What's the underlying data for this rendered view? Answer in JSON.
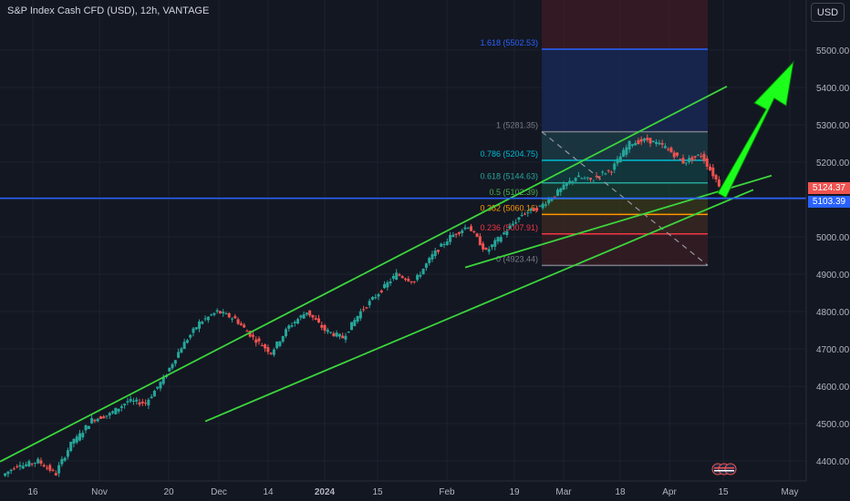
{
  "header": {
    "title": "S&P Index Cash CFD (USD), 12h, VANTAGE",
    "currency_button": "USD"
  },
  "badges": {
    "current_price": "5124.37",
    "line_price": "5103.39"
  },
  "fib_labels": [
    "1.618 (5502.53)",
    "1 (5281.35)",
    "0.786 (5204.75)",
    "0.618 (5144.63)",
    "0.5 (5102.39)",
    "0.382 (5060.16)",
    "0.236 (5007.91)",
    "0 (4923.44)"
  ],
  "colors": {
    "background": "#131722",
    "up": "#26a69a",
    "down": "#ef5350",
    "channel": "#3cd43c",
    "arrow": "#1bff1b",
    "horizontal_line": "#2962ff"
  },
  "chart_data": {
    "type": "candlestick",
    "title": "S&P Index Cash CFD (USD), 12h, VANTAGE",
    "ylim": [
      4350,
      5650
    ],
    "y_ticks": [
      "5500.00",
      "5400.00",
      "5300.00",
      "5200.00",
      "5100.00",
      "5000.00",
      "4900.00",
      "4800.00",
      "4700.00",
      "4600.00",
      "4500.00",
      "4400.00"
    ],
    "x_ticks": [
      "16",
      "Nov",
      "20",
      "Dec",
      "14",
      "2024",
      "15",
      "Feb",
      "19",
      "Mar",
      "18",
      "Apr",
      "15",
      "May"
    ],
    "price_path": [
      [
        4360,
        4395
      ],
      [
        4385,
        4400
      ],
      [
        4400,
        4365
      ],
      [
        4370,
        4460
      ],
      [
        4450,
        4510
      ],
      [
        4510,
        4525
      ],
      [
        4525,
        4560
      ],
      [
        4560,
        4555
      ],
      [
        4555,
        4620
      ],
      [
        4620,
        4705
      ],
      [
        4705,
        4770
      ],
      [
        4770,
        4800
      ],
      [
        4800,
        4780
      ],
      [
        4780,
        4730
      ],
      [
        4730,
        4690
      ],
      [
        4690,
        4760
      ],
      [
        4760,
        4800
      ],
      [
        4800,
        4750
      ],
      [
        4750,
        4730
      ],
      [
        4730,
        4800
      ],
      [
        4800,
        4850
      ],
      [
        4850,
        4900
      ],
      [
        4900,
        4880
      ],
      [
        4880,
        4950
      ],
      [
        4950,
        5000
      ],
      [
        5000,
        5030
      ],
      [
        5030,
        4960
      ],
      [
        4960,
        5010
      ],
      [
        5010,
        5060
      ],
      [
        5060,
        5080
      ],
      [
        5080,
        5120
      ],
      [
        5120,
        5160
      ],
      [
        5160,
        5150
      ],
      [
        5160,
        5180
      ],
      [
        5180,
        5250
      ],
      [
        5250,
        5260
      ],
      [
        5260,
        5240
      ],
      [
        5240,
        5200
      ],
      [
        5200,
        5220
      ],
      [
        5220,
        5140
      ]
    ],
    "current_price": 5124.37,
    "horizontal_line": 5103.39,
    "fibonacci": [
      {
        "label": "1.618 (5502.53)",
        "price": 5502.53
      },
      {
        "label": "1 (5281.35)",
        "price": 5281.35
      },
      {
        "label": "0.786 (5204.75)",
        "price": 5204.75
      },
      {
        "label": "0.618 (5144.63)",
        "price": 5144.63
      },
      {
        "label": "0.5 (5102.39)",
        "price": 5102.39
      },
      {
        "label": "0.382 (5060.16)",
        "price": 5060.16
      },
      {
        "label": "0.236 (5007.91)",
        "price": 5007.91
      },
      {
        "label": "0 (4923.44)",
        "price": 4923.44
      }
    ]
  }
}
